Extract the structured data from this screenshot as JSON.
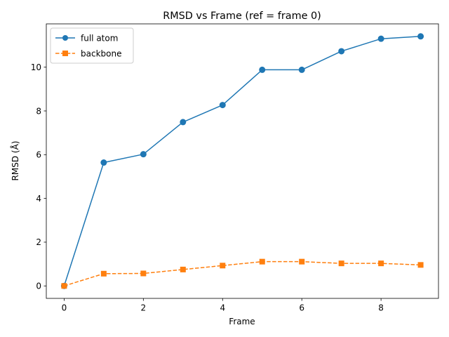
{
  "chart_data": {
    "type": "line",
    "title": "RMSD vs Frame (ref = frame 0)",
    "xlabel": "Frame",
    "ylabel": "RMSD (Å)",
    "xlim": [
      -0.45,
      9.45
    ],
    "ylim": [
      -0.57,
      11.98
    ],
    "xticks": [
      0,
      2,
      4,
      6,
      8
    ],
    "yticks": [
      0,
      2,
      4,
      6,
      8,
      10
    ],
    "grid": false,
    "legend_position": "top-left",
    "x": [
      0,
      1,
      2,
      3,
      4,
      5,
      6,
      7,
      8,
      9
    ],
    "series": [
      {
        "name": "full atom",
        "values": [
          0.0,
          5.64,
          6.02,
          7.49,
          8.27,
          9.88,
          9.88,
          10.73,
          11.3,
          11.41
        ],
        "color": "#1f77b4",
        "marker": "circle",
        "linestyle": "solid"
      },
      {
        "name": "backbone",
        "values": [
          0.0,
          0.56,
          0.57,
          0.75,
          0.93,
          1.11,
          1.11,
          1.03,
          1.03,
          0.96
        ],
        "color": "#ff7f0e",
        "marker": "square",
        "linestyle": "dashed"
      }
    ]
  }
}
